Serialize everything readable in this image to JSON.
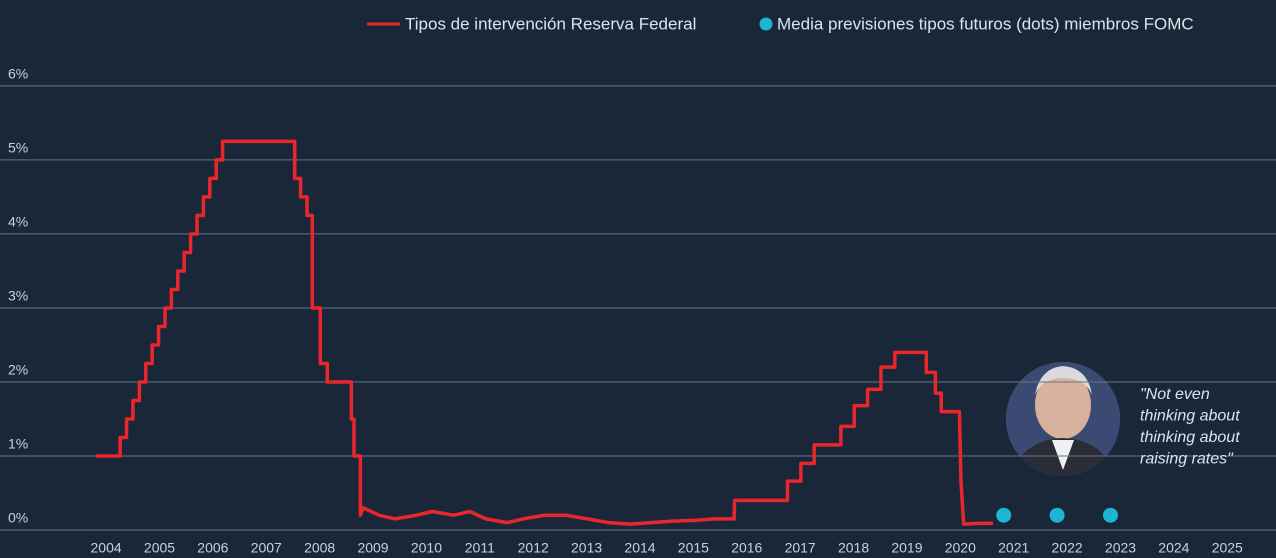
{
  "chart_data": {
    "type": "line",
    "xlim": [
      2002.2,
      2026.1
    ],
    "xticks": [
      2004,
      2005,
      2006,
      2007,
      2008,
      2009,
      2010,
      2011,
      2012,
      2013,
      2014,
      2015,
      2016,
      2017,
      2018,
      2019,
      2020,
      2021,
      2022,
      2023,
      2024,
      2025
    ],
    "ylim": [
      0,
      6.35
    ],
    "yticks": [
      {
        "value": 0,
        "label": "0%"
      },
      {
        "value": 1,
        "label": "1%"
      },
      {
        "value": 2,
        "label": "2%"
      },
      {
        "value": 3,
        "label": "3%"
      },
      {
        "value": 4,
        "label": "4%"
      },
      {
        "value": 5,
        "label": "5%"
      },
      {
        "value": 6,
        "label": "6%"
      }
    ],
    "grid": true,
    "legend": "top-right",
    "annotation": [
      "\"Not even",
      "thinking about",
      "thinking about",
      "raising rates\""
    ],
    "series": [
      {
        "name": "Tipos de intervención Reserva Federal",
        "color": "#e8262c",
        "marker": "line",
        "x": [
          2004.0,
          2004.45,
          2004.45,
          2004.57,
          2004.57,
          2004.69,
          2004.69,
          2004.81,
          2004.81,
          2004.93,
          2004.93,
          2005.05,
          2005.05,
          2005.17,
          2005.17,
          2005.29,
          2005.29,
          2005.41,
          2005.41,
          2005.53,
          2005.53,
          2005.65,
          2005.65,
          2005.77,
          2005.77,
          2005.89,
          2005.89,
          2006.01,
          2006.01,
          2006.13,
          2006.13,
          2006.25,
          2006.25,
          2006.37,
          2006.37,
          2007.72,
          2007.72,
          2007.83,
          2007.83,
          2007.95,
          2007.95,
          2008.05,
          2008.05,
          2008.2,
          2008.2,
          2008.33,
          2008.33,
          2008.78,
          2008.78,
          2008.83,
          2008.83,
          2008.95,
          2008.95,
          2009.0,
          2009.3,
          2009.6,
          2010.0,
          2010.3,
          2010.7,
          2011.0,
          2011.3,
          2011.7,
          2012.0,
          2012.4,
          2012.8,
          2013.2,
          2013.6,
          2014.0,
          2014.4,
          2014.8,
          2015.2,
          2015.6,
          2015.95,
          2015.96,
          2016.95,
          2016.95,
          2017.2,
          2017.2,
          2017.45,
          2017.45,
          2017.95,
          2017.95,
          2018.2,
          2018.2,
          2018.45,
          2018.45,
          2018.7,
          2018.7,
          2018.96,
          2018.96,
          2019.55,
          2019.55,
          2019.72,
          2019.72,
          2019.83,
          2019.83,
          2020.17,
          2020.2,
          2020.25,
          2020.5,
          2020.8
        ],
        "values": [
          1.0,
          1.0,
          1.25,
          1.25,
          1.5,
          1.5,
          1.75,
          1.75,
          2.0,
          2.0,
          2.25,
          2.25,
          2.5,
          2.5,
          2.75,
          2.75,
          3.0,
          3.0,
          3.25,
          3.25,
          3.5,
          3.5,
          3.75,
          3.75,
          4.0,
          4.0,
          4.25,
          4.25,
          4.5,
          4.5,
          4.75,
          4.75,
          5.0,
          5.0,
          5.25,
          5.25,
          4.75,
          4.75,
          4.5,
          4.5,
          4.25,
          4.25,
          3.0,
          3.0,
          2.25,
          2.25,
          2.0,
          2.0,
          1.5,
          1.5,
          1.0,
          1.0,
          0.2,
          0.3,
          0.2,
          0.15,
          0.2,
          0.25,
          0.2,
          0.25,
          0.15,
          0.1,
          0.15,
          0.2,
          0.2,
          0.15,
          0.1,
          0.08,
          0.1,
          0.12,
          0.13,
          0.15,
          0.15,
          0.4,
          0.4,
          0.66,
          0.66,
          0.9,
          0.9,
          1.15,
          1.15,
          1.4,
          1.4,
          1.68,
          1.68,
          1.9,
          1.9,
          2.2,
          2.2,
          2.4,
          2.4,
          2.13,
          2.13,
          1.85,
          1.85,
          1.6,
          1.6,
          0.65,
          0.08,
          0.09,
          0.09
        ]
      },
      {
        "name": "Media previsiones tipos futuros (dots) miembros FOMC",
        "color": "#1eb4d4",
        "marker": "dot",
        "x": [
          2021,
          2022,
          2023
        ],
        "values": [
          0.2,
          0.2,
          0.2
        ]
      }
    ]
  }
}
